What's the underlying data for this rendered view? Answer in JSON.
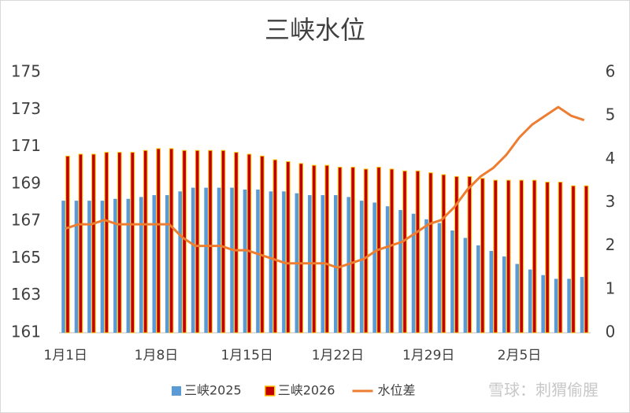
{
  "chart_data": {
    "type": "bar_line",
    "title": "三峡水位",
    "categories": [
      "1月1日",
      null,
      null,
      null,
      null,
      null,
      null,
      "1月8日",
      null,
      null,
      null,
      null,
      null,
      null,
      "1月15日",
      null,
      null,
      null,
      null,
      null,
      null,
      "1月22日",
      null,
      null,
      null,
      null,
      null,
      null,
      "1月29日",
      null,
      null,
      null,
      null,
      null,
      null,
      "2月5日",
      null,
      null,
      null,
      null,
      null
    ],
    "series": [
      {
        "name": "三峡2025",
        "type": "bar",
        "color": "#5B9BD5",
        "values": [
          168.1,
          168.1,
          168.1,
          168.1,
          168.2,
          168.2,
          168.3,
          168.4,
          168.4,
          168.6,
          168.8,
          168.8,
          168.8,
          168.8,
          168.7,
          168.7,
          168.6,
          168.6,
          168.5,
          168.4,
          168.4,
          168.4,
          168.3,
          168.1,
          168.0,
          167.8,
          167.6,
          167.4,
          167.1,
          166.9,
          166.5,
          166.1,
          165.7,
          165.4,
          165.1,
          164.7,
          164.4,
          164.1,
          163.9,
          163.9,
          164.0
        ]
      },
      {
        "name": "三峡2026",
        "type": "bar",
        "color": "#C00000",
        "edgecolor": "#FFC000",
        "values": [
          170.5,
          170.6,
          170.6,
          170.7,
          170.7,
          170.7,
          170.8,
          170.9,
          170.9,
          170.8,
          170.8,
          170.8,
          170.8,
          170.7,
          170.6,
          170.5,
          170.3,
          170.2,
          170.1,
          170.0,
          170.0,
          169.9,
          169.9,
          169.8,
          169.9,
          169.8,
          169.7,
          169.7,
          169.6,
          169.5,
          169.4,
          169.4,
          169.3,
          169.2,
          169.2,
          169.2,
          169.2,
          169.1,
          169.1,
          168.9,
          168.9
        ]
      },
      {
        "name": "水位差",
        "type": "line",
        "axis": "y2",
        "color": "#ED7D31",
        "values": [
          2.4,
          2.5,
          2.5,
          2.6,
          2.5,
          2.5,
          2.5,
          2.5,
          2.5,
          2.2,
          2.0,
          2.0,
          2.0,
          1.9,
          1.9,
          1.8,
          1.7,
          1.6,
          1.6,
          1.6,
          1.6,
          1.5,
          1.6,
          1.7,
          1.9,
          2.0,
          2.1,
          2.3,
          2.5,
          2.6,
          2.9,
          3.3,
          3.6,
          3.8,
          4.1,
          4.5,
          4.8,
          5.0,
          5.2,
          5.0,
          4.9
        ]
      }
    ],
    "ylim": [
      161,
      175
    ],
    "yticks": [
      161,
      163,
      165,
      167,
      169,
      171,
      173,
      175
    ],
    "y2lim": [
      0,
      6
    ],
    "y2ticks": [
      0,
      1,
      2,
      3,
      4,
      5,
      6
    ],
    "grid": false,
    "legend": "bottom",
    "watermark": "雪球：刺猬偷腥"
  }
}
